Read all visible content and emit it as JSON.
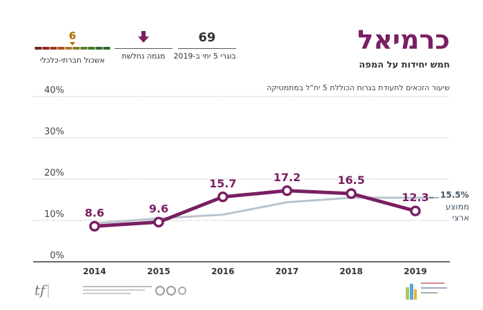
{
  "header": {
    "city": "כרמיאל",
    "subtitle": "חמש יחידות על המפה"
  },
  "kpis": {
    "graduates": {
      "value": "69",
      "label": "בוגרי 5 יחי ב-2019"
    },
    "trend": {
      "label": "מגמה נחלשת",
      "icon": "arrow-down-icon"
    },
    "socio": {
      "value": "6",
      "label": "אשכול חברתי-כלכלי",
      "scale_colors": [
        "#7a1f1f",
        "#8b2a1f",
        "#9a3a1f",
        "#a7541f",
        "#b3752a",
        "#8a7d2a",
        "#5f7d2a",
        "#3d7a2a",
        "#2e6b2e",
        "#2b6a2b"
      ]
    }
  },
  "chart_caption": "שיעור הזכאים לתעודת בגרות הכוללת 5 יח\"ל במתמטיקה",
  "national": {
    "value_label": "15.5%",
    "label": "ממוצע ארצי"
  },
  "chart_data": {
    "type": "line",
    "x": [
      2014,
      2015,
      2016,
      2017,
      2018,
      2019
    ],
    "xticks": [
      "2014",
      "2015",
      "2016",
      "2017",
      "2018",
      "2019"
    ],
    "yticks": [
      "0%",
      "10%",
      "20%",
      "30%",
      "40%"
    ],
    "ylim": [
      0,
      40
    ],
    "grid": true,
    "series": [
      {
        "values": [
          8.6,
          9.6,
          15.7,
          17.2,
          16.5,
          12.3
        ],
        "labels": [
          "8.6",
          "9.6",
          "15.7",
          "17.2",
          "16.5",
          "12.3"
        ],
        "color": "#7a1f62"
      },
      {
        "name": "ממוצע ארצי",
        "values": [
          9.3,
          10.5,
          11.4,
          14.4,
          15.5,
          15.5
        ],
        "color": "#b8c4cc"
      }
    ]
  },
  "colors": {
    "brand": "#7a1f62",
    "national": "#b8c4cc",
    "axis": "#333333"
  },
  "logos": {
    "left_text": "TRUST FOUNDATION",
    "center_text": "המרכז לחינוך מנהיגות ומצוינות",
    "right_text": "ערים מצוינות Cities of Excellence"
  }
}
